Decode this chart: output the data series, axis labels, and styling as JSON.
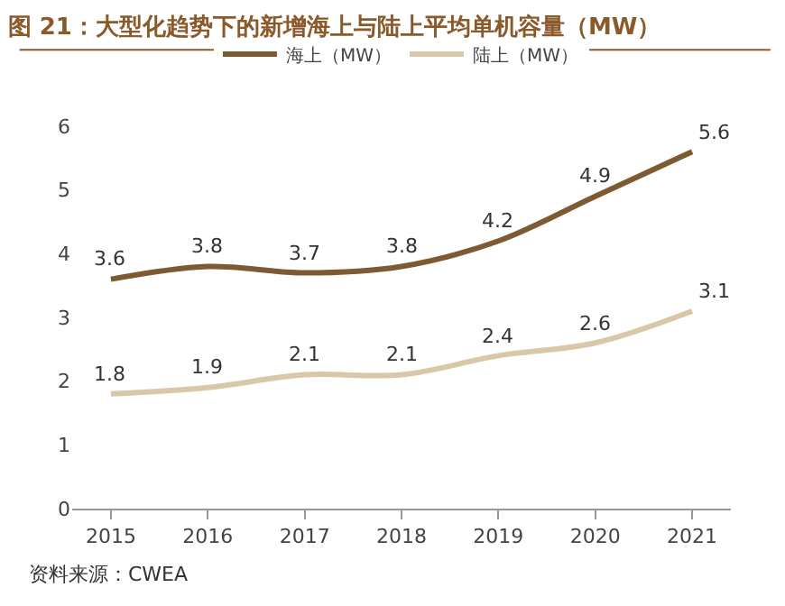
{
  "chart_data": {
    "type": "line",
    "title": "图 21：大型化趋势下的新增海上与陆上平均单机容量（MW）",
    "categories": [
      "2015",
      "2016",
      "2017",
      "2018",
      "2019",
      "2020",
      "2021"
    ],
    "series": [
      {
        "name": "海上（MW）",
        "color": "#7d5a32",
        "values": [
          3.6,
          3.8,
          3.7,
          3.8,
          4.2,
          4.9,
          5.6
        ]
      },
      {
        "name": "陆上（MW）",
        "color": "#d8c8a8",
        "values": [
          1.8,
          1.9,
          2.1,
          2.1,
          2.4,
          2.6,
          3.1
        ]
      }
    ],
    "ylim": [
      0,
      6
    ],
    "yticks": [
      0,
      1,
      2,
      3,
      4,
      5,
      6
    ],
    "legend": "top",
    "data_labels": true,
    "line_style": "solid",
    "annotations": [
      "资料来源：CWEA"
    ]
  }
}
